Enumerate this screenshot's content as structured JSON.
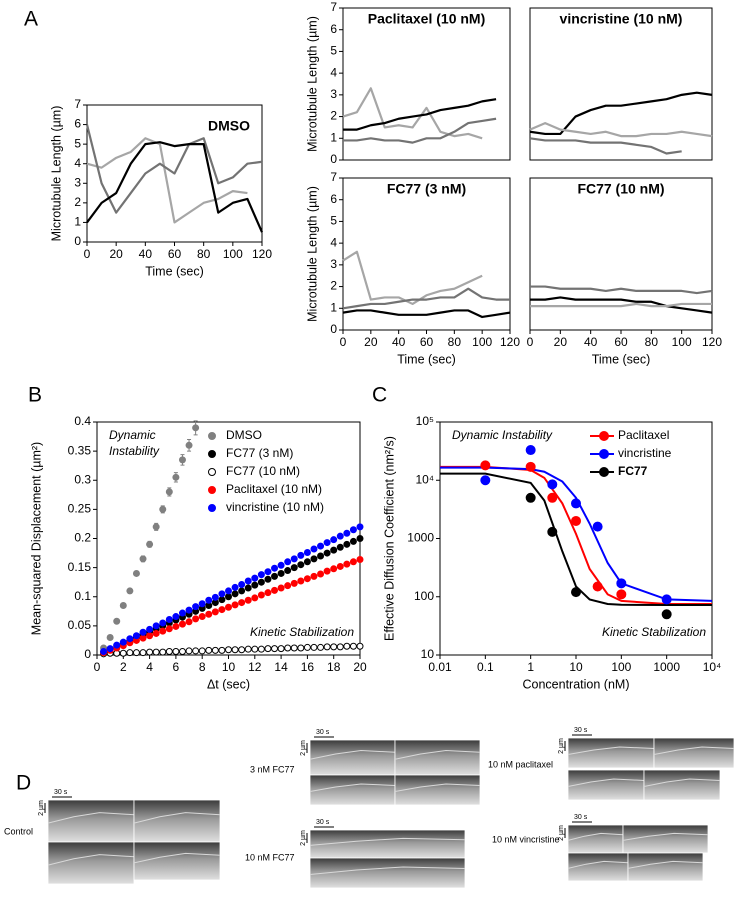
{
  "panel_labels": [
    "A",
    "B",
    "C",
    "D"
  ],
  "chart_data": [
    {
      "type": "line",
      "title": "DMSO",
      "title_color": "#808080",
      "xlabel": "Time (sec)",
      "ylabel": "Microtubule Length (µm)",
      "x": [
        0,
        10,
        20,
        30,
        40,
        50,
        60,
        70,
        80,
        90,
        100,
        110,
        120
      ],
      "xlim": [
        0,
        120
      ],
      "xticks": [
        0,
        20,
        40,
        60,
        80,
        100,
        120
      ],
      "ylim": [
        0,
        7
      ],
      "yticks": [
        0,
        1,
        2,
        3,
        4,
        5,
        6,
        7
      ],
      "series": [
        {
          "color": "#a6a6a6",
          "values": [
            4.0,
            3.8,
            4.3,
            4.6,
            5.3,
            5.0,
            1.0,
            1.5,
            2.0,
            2.2,
            2.6,
            2.5,
            null
          ]
        },
        {
          "color": "#737373",
          "values": [
            6.0,
            3.0,
            1.5,
            2.5,
            3.5,
            4.0,
            3.5,
            5.0,
            5.3,
            3.0,
            3.3,
            4.0,
            4.1
          ]
        },
        {
          "color": "#000000",
          "values": [
            1.0,
            2.0,
            2.5,
            4.0,
            5.0,
            5.1,
            4.9,
            5.0,
            5.0,
            1.5,
            2.0,
            2.2,
            0.5
          ]
        }
      ]
    },
    {
      "type": "line",
      "title": "Paclitaxel (10 nM)",
      "title_color": "#ff0000",
      "ylabel": "Microtubule Length (µm)",
      "x": [
        0,
        10,
        20,
        30,
        40,
        50,
        60,
        70,
        80,
        90,
        100,
        110,
        120
      ],
      "xlim": [
        0,
        120
      ],
      "ylim": [
        0,
        7
      ],
      "yticks": [
        0,
        1,
        2,
        3,
        4,
        5,
        6,
        7
      ],
      "series": [
        {
          "color": "#a6a6a6",
          "values": [
            2.0,
            2.2,
            3.3,
            1.5,
            1.6,
            1.5,
            2.4,
            1.3,
            1.1,
            1.2,
            1.0,
            null,
            null
          ]
        },
        {
          "color": "#000000",
          "values": [
            1.4,
            1.4,
            1.6,
            1.7,
            1.9,
            2.0,
            2.1,
            2.3,
            2.4,
            2.5,
            2.7,
            2.8,
            null
          ]
        },
        {
          "color": "#737373",
          "values": [
            0.9,
            0.9,
            1.0,
            0.9,
            0.9,
            0.8,
            1.0,
            1.0,
            1.3,
            1.7,
            1.8,
            1.9,
            null
          ]
        }
      ]
    },
    {
      "type": "line",
      "title": "vincristine (10 nM)",
      "title_color": "#0000ff",
      "x": [
        0,
        10,
        20,
        30,
        40,
        50,
        60,
        70,
        80,
        90,
        100,
        110,
        120
      ],
      "xlim": [
        0,
        120
      ],
      "ylim": [
        0,
        7
      ],
      "series": [
        {
          "color": "#000000",
          "values": [
            1.3,
            1.2,
            1.2,
            2.0,
            2.3,
            2.5,
            2.5,
            2.6,
            2.7,
            2.8,
            3.0,
            3.1,
            3.0
          ]
        },
        {
          "color": "#a6a6a6",
          "values": [
            1.4,
            1.7,
            1.4,
            1.3,
            1.2,
            1.3,
            1.1,
            1.1,
            1.2,
            1.2,
            1.3,
            1.2,
            1.1
          ]
        },
        {
          "color": "#737373",
          "values": [
            1.0,
            0.9,
            0.9,
            0.9,
            0.8,
            0.8,
            0.8,
            0.7,
            0.6,
            0.3,
            0.4,
            null,
            null
          ]
        }
      ]
    },
    {
      "type": "line",
      "title": "FC77 (3 nM)",
      "title_color": "#000000",
      "xlabel": "Time (sec)",
      "ylabel": "Microtubule Length (µm)",
      "x": [
        0,
        10,
        20,
        30,
        40,
        50,
        60,
        70,
        80,
        90,
        100,
        110,
        120
      ],
      "xlim": [
        0,
        120
      ],
      "xticks": [
        0,
        20,
        40,
        60,
        80,
        100,
        120
      ],
      "ylim": [
        0,
        7
      ],
      "yticks": [
        0,
        1,
        2,
        3,
        4,
        5,
        6,
        7
      ],
      "series": [
        {
          "color": "#a6a6a6",
          "values": [
            3.2,
            3.6,
            1.4,
            1.5,
            1.5,
            1.2,
            1.6,
            1.8,
            1.9,
            2.2,
            2.5,
            null,
            null
          ]
        },
        {
          "color": "#737373",
          "values": [
            1.0,
            1.1,
            1.2,
            1.2,
            1.3,
            1.4,
            1.4,
            1.5,
            1.5,
            1.9,
            1.5,
            1.4,
            1.4
          ]
        },
        {
          "color": "#000000",
          "values": [
            0.8,
            0.9,
            0.9,
            0.8,
            0.7,
            0.7,
            0.7,
            0.8,
            0.9,
            0.9,
            0.6,
            0.7,
            0.8
          ]
        }
      ]
    },
    {
      "type": "line",
      "title": "FC77 (10 nM)",
      "title_color": "#000000",
      "xlabel": "Time (sec)",
      "x": [
        0,
        10,
        20,
        30,
        40,
        50,
        60,
        70,
        80,
        90,
        100,
        110,
        120
      ],
      "xlim": [
        0,
        120
      ],
      "xticks": [
        0,
        20,
        40,
        60,
        80,
        100,
        120
      ],
      "ylim": [
        0,
        7
      ],
      "series": [
        {
          "color": "#737373",
          "values": [
            2.0,
            2.0,
            1.9,
            1.9,
            1.9,
            1.8,
            1.9,
            1.8,
            1.8,
            1.8,
            1.8,
            1.7,
            1.8
          ]
        },
        {
          "color": "#000000",
          "values": [
            1.4,
            1.4,
            1.5,
            1.4,
            1.4,
            1.4,
            1.4,
            1.3,
            1.3,
            1.1,
            1.0,
            0.9,
            0.8
          ]
        },
        {
          "color": "#a6a6a6",
          "values": [
            1.1,
            1.1,
            1.1,
            1.1,
            1.1,
            1.1,
            1.1,
            1.2,
            1.1,
            1.1,
            1.2,
            1.2,
            1.2
          ]
        }
      ]
    },
    {
      "type": "scatter",
      "xlabel": "Δt (sec)",
      "ylabel": "Mean-squared Displacement (µm²)",
      "legend": "upper-right",
      "annotations": [
        "Dynamic Instability",
        "Kinetic Stabilization"
      ],
      "xlim": [
        0,
        20
      ],
      "xticks": [
        0,
        2,
        4,
        6,
        8,
        10,
        12,
        14,
        16,
        18,
        20
      ],
      "ylim": [
        0,
        0.4
      ],
      "yticks": [
        0,
        0.05,
        0.1,
        0.15,
        0.2,
        0.25,
        0.3,
        0.35,
        0.4
      ],
      "x": [
        0.5,
        1,
        1.5,
        2,
        2.5,
        3,
        3.5,
        4,
        4.5,
        5,
        5.5,
        6,
        6.5,
        7,
        7.5,
        8,
        8.5,
        9,
        9.5,
        10,
        10.5,
        11,
        11.5,
        12,
        12.5,
        13,
        13.5,
        14,
        14.5,
        15,
        15.5,
        16,
        16.5,
        17,
        17.5,
        18,
        18.5,
        19,
        19.5,
        20
      ],
      "series": [
        {
          "name": "DMSO",
          "color": "#808080",
          "values": [
            0.012,
            0.03,
            0.058,
            0.085,
            0.11,
            0.14,
            0.165,
            0.19,
            0.22,
            0.25,
            0.28,
            0.305,
            0.335,
            0.36,
            0.39,
            null,
            null,
            null,
            null,
            null,
            null,
            null,
            null,
            null,
            null,
            null,
            null,
            null,
            null,
            null,
            null,
            null,
            null,
            null,
            null,
            null,
            null,
            null,
            null,
            null
          ],
          "errors": [
            0.001,
            0.002,
            0.003,
            0.003,
            0.004,
            0.004,
            0.005,
            0.005,
            0.006,
            0.006,
            0.007,
            0.008,
            0.009,
            0.01,
            0.012,
            null,
            null,
            null,
            null,
            null,
            null,
            null,
            null,
            null,
            null,
            null,
            null,
            null,
            null,
            null,
            null,
            null,
            null,
            null,
            null,
            null,
            null,
            null,
            null,
            null
          ]
        },
        {
          "name": "FC77 (3 nM)",
          "color": "#000000",
          "values": [
            0.005,
            0.01,
            0.015,
            0.02,
            0.025,
            0.03,
            0.035,
            0.04,
            0.045,
            0.05,
            0.055,
            0.06,
            0.065,
            0.07,
            0.075,
            0.08,
            0.085,
            0.09,
            0.095,
            0.1,
            0.105,
            0.11,
            0.115,
            0.12,
            0.125,
            0.13,
            0.135,
            0.14,
            0.145,
            0.15,
            0.155,
            0.16,
            0.165,
            0.17,
            0.175,
            0.18,
            0.185,
            0.19,
            0.195,
            0.2
          ]
        },
        {
          "name": "FC77 (10 nM)",
          "color": "#000000",
          "open": true,
          "values": [
            0.002,
            0.003,
            0.003,
            0.003,
            0.004,
            0.004,
            0.004,
            0.005,
            0.005,
            0.005,
            0.006,
            0.006,
            0.006,
            0.007,
            0.007,
            0.007,
            0.008,
            0.008,
            0.008,
            0.009,
            0.009,
            0.009,
            0.01,
            0.01,
            0.01,
            0.011,
            0.011,
            0.011,
            0.012,
            0.012,
            0.012,
            0.013,
            0.013,
            0.013,
            0.014,
            0.014,
            0.014,
            0.015,
            0.015,
            0.015
          ]
        },
        {
          "name": "Paclitaxel (10 nM)",
          "color": "#ff0000",
          "values": [
            0.004,
            0.008,
            0.012,
            0.016,
            0.021,
            0.025,
            0.029,
            0.033,
            0.037,
            0.041,
            0.045,
            0.049,
            0.053,
            0.057,
            0.062,
            0.066,
            0.07,
            0.074,
            0.078,
            0.082,
            0.086,
            0.09,
            0.094,
            0.098,
            0.103,
            0.107,
            0.111,
            0.115,
            0.119,
            0.123,
            0.127,
            0.131,
            0.135,
            0.139,
            0.144,
            0.148,
            0.152,
            0.156,
            0.16,
            0.164
          ]
        },
        {
          "name": "vincristine (10 nM)",
          "color": "#0000ff",
          "values": [
            0.006,
            0.011,
            0.017,
            0.022,
            0.028,
            0.033,
            0.039,
            0.044,
            0.05,
            0.055,
            0.061,
            0.066,
            0.072,
            0.077,
            0.083,
            0.088,
            0.094,
            0.099,
            0.105,
            0.11,
            0.116,
            0.121,
            0.127,
            0.132,
            0.138,
            0.143,
            0.149,
            0.154,
            0.16,
            0.165,
            0.171,
            0.176,
            0.182,
            0.187,
            0.193,
            0.198,
            0.204,
            0.209,
            0.215,
            0.22
          ]
        }
      ]
    },
    {
      "type": "scatter",
      "xlabel": "Concentration (nM)",
      "ylabel": "Effective Diffusion Coefficient (nm²/s)",
      "legend": "upper-right",
      "annotations": [
        "Dynamic Instability",
        "Kinetic Stabilization"
      ],
      "xlog": true,
      "ylog": true,
      "xlim": [
        0.01,
        10000
      ],
      "xticks": [
        0.01,
        0.1,
        1,
        10,
        100,
        1000,
        {
          "value": 10000,
          "label": "10⁴"
        }
      ],
      "ylim": [
        10,
        100000
      ],
      "yticks": [
        10,
        100,
        1000,
        {
          "value": 10000,
          "label": "10⁴"
        },
        {
          "value": 100000,
          "label": "10⁵"
        }
      ],
      "x": [
        0.1,
        1,
        3,
        10,
        30,
        100,
        1000
      ],
      "curve_x": [
        0.01,
        0.1,
        1,
        2,
        5,
        10,
        20,
        50,
        100,
        1000,
        10000
      ],
      "series": [
        {
          "name": "Paclitaxel",
          "color": "#ff0000",
          "values": [
            18000,
            17000,
            5000,
            2000,
            150,
            110,
            null
          ],
          "curve": [
            17000,
            17000,
            15000,
            11000,
            4000,
            1200,
            300,
            110,
            85,
            75,
            75
          ]
        },
        {
          "name": "vincristine",
          "color": "#0000ff",
          "values": [
            10000,
            33000,
            8500,
            4000,
            1600,
            170,
            90
          ],
          "curve": [
            16500,
            16500,
            15500,
            14000,
            9500,
            5000,
            1800,
            380,
            170,
            90,
            85
          ]
        },
        {
          "name": "FC77",
          "color": "#000000",
          "values": [
            null,
            5000,
            1300,
            120,
            null,
            null,
            50
          ],
          "curve": [
            13000,
            13000,
            9000,
            4500,
            600,
            150,
            90,
            75,
            73,
            72,
            72
          ]
        }
      ]
    }
  ],
  "kymographs": {
    "time_scale": "30 s",
    "length_scale": "2 µm",
    "groups": [
      {
        "label": "Control"
      },
      {
        "label": "3 nM FC77"
      },
      {
        "label": "10 nM FC77"
      },
      {
        "label": "10 nM paclitaxel"
      },
      {
        "label": "10 nM vincristine"
      }
    ]
  }
}
